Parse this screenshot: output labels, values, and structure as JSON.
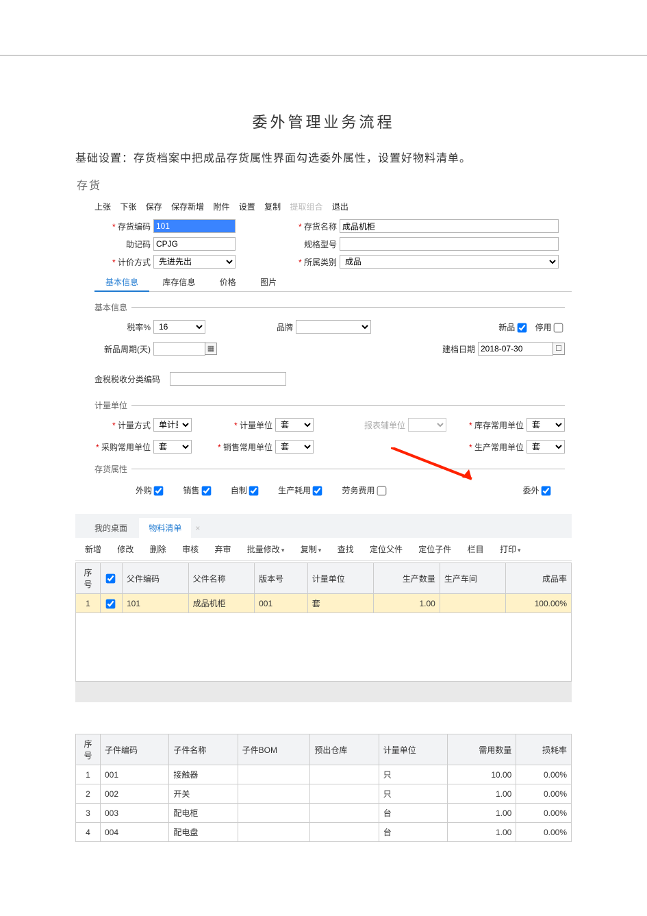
{
  "doc": {
    "title": "委外管理业务流程",
    "intro": "基础设置：存货档案中把成品存货属性界面勾选委外属性，设置好物料清单。",
    "panel": "存货"
  },
  "toolbar1": [
    "上张",
    "下张",
    "保存",
    "保存新增",
    "附件",
    "设置",
    "复制"
  ],
  "toolbar1_disabled": "提取组合",
  "toolbar1_exit": "退出",
  "form": {
    "code_label": "存货编码",
    "code": "101",
    "help_label": "助记码",
    "help": "CPJG",
    "pricing_label": "计价方式",
    "pricing": "先进先出",
    "name_label": "存货名称",
    "name": "成品机柜",
    "spec_label": "规格型号",
    "spec": "",
    "cat_label": "所属类别",
    "cat": "成品"
  },
  "tabs1": {
    "a": "基本信息",
    "b": "库存信息",
    "c": "价格",
    "d": "图片"
  },
  "sec_basic": {
    "legend": "基本信息",
    "tax_label": "税率%",
    "tax": "16",
    "brand_label": "品牌",
    "newflag_label": "新品",
    "stop_label": "停用",
    "newcycle_label": "新品周期(天)",
    "createdate_label": "建档日期",
    "createdate": "2018-07-30",
    "taxcode_label": "金税税收分类编码"
  },
  "sec_unit": {
    "legend": "计量单位",
    "mode_label": "计量方式",
    "mode": "单计量",
    "unit_label": "计量单位",
    "unit": "套",
    "rpt_label": "报表辅单位",
    "stock_label": "库存常用单位",
    "stock": "套",
    "buy_label": "采购常用单位",
    "buy": "套",
    "sale_label": "销售常用单位",
    "sale": "套",
    "prod_label": "生产常用单位",
    "prod": "套"
  },
  "sec_attr": {
    "legend": "存货属性",
    "a": "外购",
    "b": "销售",
    "c": "自制",
    "d": "生产耗用",
    "e": "劳务费用",
    "f": "委外"
  },
  "wintabs": {
    "a": "我的桌面",
    "b": "物料清单"
  },
  "toolbar2": [
    "新增",
    "修改",
    "删除",
    "审核",
    "弃审"
  ],
  "toolbar2_caret1": "批量修改",
  "toolbar2_caret2": "复制",
  "toolbar2_b": [
    "查找",
    "定位父件",
    "定位子件",
    "栏目"
  ],
  "toolbar2_caret3": "打印",
  "bom_head": {
    "c0": "序号",
    "c1": "父件编码",
    "c2": "父件名称",
    "c3": "版本号",
    "c4": "计量单位",
    "c5": "生产数量",
    "c6": "生产车间",
    "c7": "成品率"
  },
  "bom_row": {
    "n": "1",
    "code": "101",
    "name": "成品机柜",
    "ver": "001",
    "unit": "套",
    "qty": "1.00",
    "shop": "",
    "rate": "100.00%"
  },
  "child_head": {
    "c0": "序号",
    "c1": "子件编码",
    "c2": "子件名称",
    "c3": "子件BOM",
    "c4": "预出仓库",
    "c5": "计量单位",
    "c6": "需用数量",
    "c7": "损耗率"
  },
  "child_rows": [
    {
      "n": "1",
      "code": "001",
      "name": "接触器",
      "bom": "",
      "wh": "",
      "unit": "只",
      "qty": "10.00",
      "loss": "0.00%"
    },
    {
      "n": "2",
      "code": "002",
      "name": "开关",
      "bom": "",
      "wh": "",
      "unit": "只",
      "qty": "1.00",
      "loss": "0.00%"
    },
    {
      "n": "3",
      "code": "003",
      "name": "配电柜",
      "bom": "",
      "wh": "",
      "unit": "台",
      "qty": "1.00",
      "loss": "0.00%"
    },
    {
      "n": "4",
      "code": "004",
      "name": "配电盘",
      "bom": "",
      "wh": "",
      "unit": "台",
      "qty": "1.00",
      "loss": "0.00%"
    }
  ]
}
